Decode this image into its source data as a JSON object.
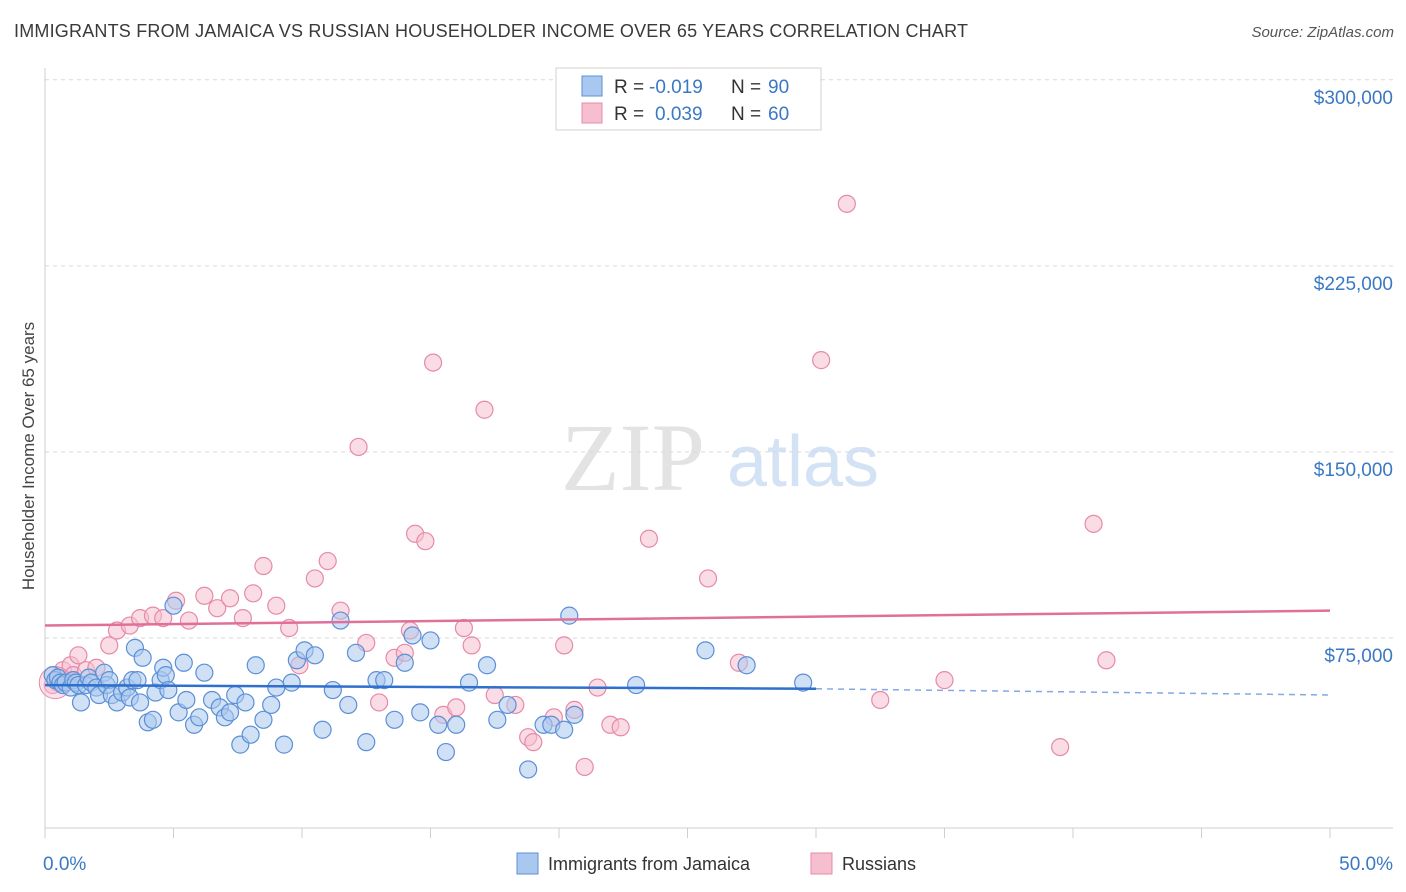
{
  "header": {
    "title": "IMMIGRANTS FROM JAMAICA VS RUSSIAN HOUSEHOLDER INCOME OVER 65 YEARS CORRELATION CHART",
    "source": "Source: ZipAtlas.com"
  },
  "watermark": {
    "zip": "ZIP",
    "atlas": "atlas"
  },
  "legend_box": {
    "rows": [
      {
        "r_label": "R =",
        "r_value": "-0.019",
        "n_label": "N =",
        "n_value": "90"
      },
      {
        "r_label": "R =",
        "r_value": "0.039",
        "n_label": "N =",
        "n_value": "60"
      }
    ]
  },
  "colors": {
    "jamaica_fill": "#a9c8ef",
    "jamaica_stroke": "#5b8fd6",
    "jamaica_line": "#2f6fce",
    "russian_fill": "#f6bfd0",
    "russian_stroke": "#e68aa9",
    "russian_line": "#e07099",
    "axis_text": "#3b78c4",
    "grid": "#d9d9d9"
  },
  "chart_data": {
    "type": "scatter",
    "title": "IMMIGRANTS FROM JAMAICA VS RUSSIAN HOUSEHOLDER INCOME OVER 65 YEARS CORRELATION CHART",
    "xlabel": "",
    "ylabel": "Householder Income Over 65 years",
    "xlim": [
      0,
      50
    ],
    "ylim": [
      0,
      310000
    ],
    "x_tick_labels": [
      "0.0%",
      "50.0%"
    ],
    "y_ticks": [
      {
        "value": 75000,
        "label": "$75,000"
      },
      {
        "value": 150000,
        "label": "$150,000"
      },
      {
        "value": 225000,
        "label": "$225,000"
      },
      {
        "value": 300000,
        "label": "$300,000"
      }
    ],
    "grid": "horizontal dashed",
    "legend_position": "bottom-center",
    "series": [
      {
        "name": "Immigrants from Jamaica",
        "R": -0.019,
        "N": 90,
        "trend": {
          "x0": 0,
          "y0": 56000,
          "x1": 30,
          "y1": 54500,
          "dashed_to_x": 50,
          "dashed_y": 52000
        },
        "points": [
          [
            0.3,
            60000
          ],
          [
            0.4,
            58000
          ],
          [
            0.5,
            59000
          ],
          [
            0.6,
            57000
          ],
          [
            0.7,
            56000
          ],
          [
            0.8,
            57000
          ],
          [
            1.0,
            55000
          ],
          [
            1.1,
            58000
          ],
          [
            1.2,
            57000
          ],
          [
            1.3,
            56000
          ],
          [
            1.4,
            49000
          ],
          [
            1.6,
            56000
          ],
          [
            1.7,
            59000
          ],
          [
            1.8,
            57000
          ],
          [
            2.0,
            55000
          ],
          [
            2.1,
            52000
          ],
          [
            2.3,
            61000
          ],
          [
            2.4,
            56000
          ],
          [
            2.5,
            58000
          ],
          [
            2.6,
            52000
          ],
          [
            2.8,
            49000
          ],
          [
            3.0,
            53000
          ],
          [
            3.2,
            55000
          ],
          [
            3.3,
            51000
          ],
          [
            3.4,
            58000
          ],
          [
            3.5,
            71000
          ],
          [
            3.6,
            58000
          ],
          [
            3.7,
            49000
          ],
          [
            3.8,
            67000
          ],
          [
            4.0,
            41000
          ],
          [
            4.2,
            42000
          ],
          [
            4.3,
            53000
          ],
          [
            4.5,
            58000
          ],
          [
            4.6,
            63000
          ],
          [
            4.7,
            60000
          ],
          [
            4.8,
            54000
          ],
          [
            5.0,
            88000
          ],
          [
            5.2,
            45000
          ],
          [
            5.4,
            65000
          ],
          [
            5.5,
            50000
          ],
          [
            5.8,
            40000
          ],
          [
            6.0,
            43000
          ],
          [
            6.2,
            61000
          ],
          [
            6.5,
            50000
          ],
          [
            6.8,
            47000
          ],
          [
            7.0,
            43000
          ],
          [
            7.2,
            45000
          ],
          [
            7.4,
            52000
          ],
          [
            7.6,
            32000
          ],
          [
            7.8,
            49000
          ],
          [
            8.0,
            36000
          ],
          [
            8.2,
            64000
          ],
          [
            8.5,
            42000
          ],
          [
            8.8,
            48000
          ],
          [
            9.0,
            55000
          ],
          [
            9.3,
            32000
          ],
          [
            9.6,
            57000
          ],
          [
            9.8,
            66000
          ],
          [
            10.1,
            70000
          ],
          [
            10.5,
            68000
          ],
          [
            10.8,
            38000
          ],
          [
            11.2,
            54000
          ],
          [
            11.5,
            82000
          ],
          [
            11.8,
            48000
          ],
          [
            12.1,
            69000
          ],
          [
            12.5,
            33000
          ],
          [
            12.9,
            58000
          ],
          [
            13.2,
            58000
          ],
          [
            13.6,
            42000
          ],
          [
            14.0,
            65000
          ],
          [
            14.3,
            76000
          ],
          [
            14.6,
            45000
          ],
          [
            15.0,
            74000
          ],
          [
            15.3,
            40000
          ],
          [
            15.6,
            29000
          ],
          [
            16.0,
            40000
          ],
          [
            16.5,
            57000
          ],
          [
            17.2,
            64000
          ],
          [
            17.6,
            42000
          ],
          [
            18.0,
            48000
          ],
          [
            18.8,
            22000
          ],
          [
            19.4,
            40000
          ],
          [
            19.7,
            40000
          ],
          [
            20.2,
            38000
          ],
          [
            20.4,
            84000
          ],
          [
            20.6,
            44000
          ],
          [
            23.0,
            56000
          ],
          [
            25.7,
            70000
          ],
          [
            27.3,
            64000
          ],
          [
            29.5,
            57000
          ]
        ]
      },
      {
        "name": "Russians",
        "R": 0.039,
        "N": 60,
        "trend": {
          "x0": 0,
          "y0": 80000,
          "x1": 50,
          "y1": 86000
        },
        "points": [
          [
            0.3,
            56000
          ],
          [
            0.5,
            57000
          ],
          [
            0.7,
            62000
          ],
          [
            0.9,
            58000
          ],
          [
            1.0,
            64000
          ],
          [
            1.1,
            60000
          ],
          [
            1.3,
            68000
          ],
          [
            1.6,
            62000
          ],
          [
            2.0,
            63000
          ],
          [
            2.5,
            72000
          ],
          [
            2.8,
            78000
          ],
          [
            3.3,
            80000
          ],
          [
            3.7,
            83000
          ],
          [
            4.2,
            84000
          ],
          [
            4.6,
            83000
          ],
          [
            5.1,
            90000
          ],
          [
            5.6,
            82000
          ],
          [
            6.2,
            92000
          ],
          [
            6.7,
            87000
          ],
          [
            7.2,
            91000
          ],
          [
            7.7,
            83000
          ],
          [
            8.1,
            93000
          ],
          [
            8.5,
            104000
          ],
          [
            9.0,
            88000
          ],
          [
            9.5,
            79000
          ],
          [
            9.9,
            64000
          ],
          [
            10.5,
            99000
          ],
          [
            11.0,
            106000
          ],
          [
            11.5,
            86000
          ],
          [
            12.2,
            152000
          ],
          [
            12.5,
            73000
          ],
          [
            13.0,
            49000
          ],
          [
            13.6,
            67000
          ],
          [
            14.0,
            69000
          ],
          [
            14.2,
            78000
          ],
          [
            14.4,
            117000
          ],
          [
            14.8,
            114000
          ],
          [
            15.1,
            186000
          ],
          [
            15.5,
            44000
          ],
          [
            16.0,
            47000
          ],
          [
            16.3,
            79000
          ],
          [
            16.6,
            72000
          ],
          [
            17.1,
            167000
          ],
          [
            17.5,
            52000
          ],
          [
            18.3,
            48000
          ],
          [
            18.8,
            35000
          ],
          [
            19.0,
            33000
          ],
          [
            19.8,
            43000
          ],
          [
            20.2,
            72000
          ],
          [
            20.6,
            46000
          ],
          [
            21.0,
            23000
          ],
          [
            21.5,
            55000
          ],
          [
            22.0,
            40000
          ],
          [
            22.4,
            39000
          ],
          [
            23.5,
            115000
          ],
          [
            25.8,
            99000
          ],
          [
            27.0,
            65000
          ],
          [
            30.2,
            187000
          ],
          [
            31.2,
            250000
          ],
          [
            32.5,
            50000
          ]
        ]
      }
    ],
    "extra_points_russians": [
      [
        35.0,
        58000
      ],
      [
        39.5,
        31000
      ],
      [
        40.8,
        121000
      ],
      [
        41.3,
        66000
      ]
    ]
  },
  "bottom_legend": {
    "items": [
      {
        "label": "Immigrants from Jamaica"
      },
      {
        "label": "Russians"
      }
    ]
  }
}
